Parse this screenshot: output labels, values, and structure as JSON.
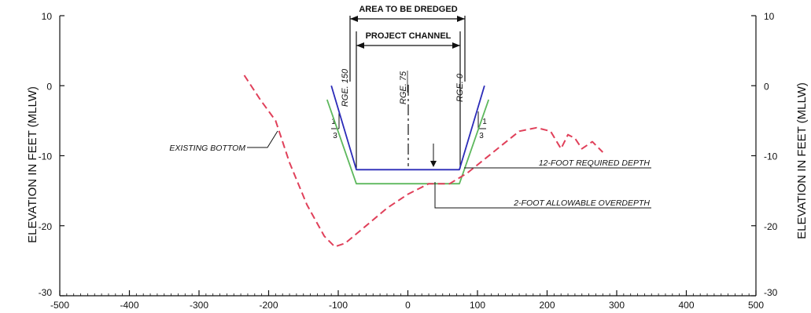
{
  "axes": {
    "y_label_left": "ELEVATION IN FEET (MLLW)",
    "y_label_right": "ELEVATION IN FEET (MLLW)",
    "x_ticks": [
      -500,
      -400,
      -300,
      -200,
      -100,
      0,
      100,
      200,
      300,
      400,
      500
    ],
    "y_ticks": [
      10,
      0,
      -10,
      -20,
      -30
    ],
    "xlim": [
      -500,
      500
    ],
    "ylim": [
      -30,
      10
    ]
  },
  "labels": {
    "area_to_be_dredged": "AREA TO BE DREDGED",
    "project_channel": "PROJECT CHANNEL",
    "rge_150": "RGE. 150",
    "rge_75": "RGE. 75",
    "rge_0": "RGE. 0",
    "existing_bottom": "EXISTING BOTTOM",
    "required_depth": "12-FOOT REQUIRED DEPTH",
    "overdepth": "2-FOOT ALLOWABLE OVERDEPTH",
    "slope_rise": "1",
    "slope_run": "3"
  },
  "colors": {
    "required_depth": "#2b2bb8",
    "overdepth": "#5db85d",
    "existing_bottom": "#e0405a"
  },
  "chart_data": {
    "type": "line",
    "xlabel": "",
    "ylabel": "ELEVATION IN FEET (MLLW)",
    "xlim": [
      -500,
      500
    ],
    "ylim": [
      -30,
      10
    ],
    "series": [
      {
        "name": "12-FOOT REQUIRED DEPTH",
        "style": "solid",
        "x": [
          -110,
          -74,
          -74,
          74,
          74,
          110
        ],
        "y": [
          0,
          -12,
          -12,
          -12,
          -12,
          0
        ]
      },
      {
        "name": "2-FOOT ALLOWABLE OVERDEPTH",
        "style": "solid",
        "x": [
          -116,
          -74,
          74,
          116
        ],
        "y": [
          -2,
          -14,
          -14,
          -2
        ]
      },
      {
        "name": "EXISTING BOTTOM",
        "style": "dashed",
        "x": [
          -235,
          -212,
          -190,
          -170,
          -145,
          -120,
          -105,
          -90,
          -60,
          -30,
          0,
          30,
          60,
          85,
          110,
          135,
          160,
          185,
          205,
          220,
          230,
          240,
          250,
          265,
          280
        ],
        "y": [
          1.5,
          -2,
          -5,
          -11,
          -17,
          -21.5,
          -23,
          -22.5,
          -20,
          -17.5,
          -15.5,
          -14,
          -14,
          -12.5,
          -10.5,
          -8.5,
          -6.5,
          -6,
          -6.5,
          -9,
          -7,
          -7.5,
          -9,
          -8,
          -9.5
        ]
      }
    ]
  }
}
